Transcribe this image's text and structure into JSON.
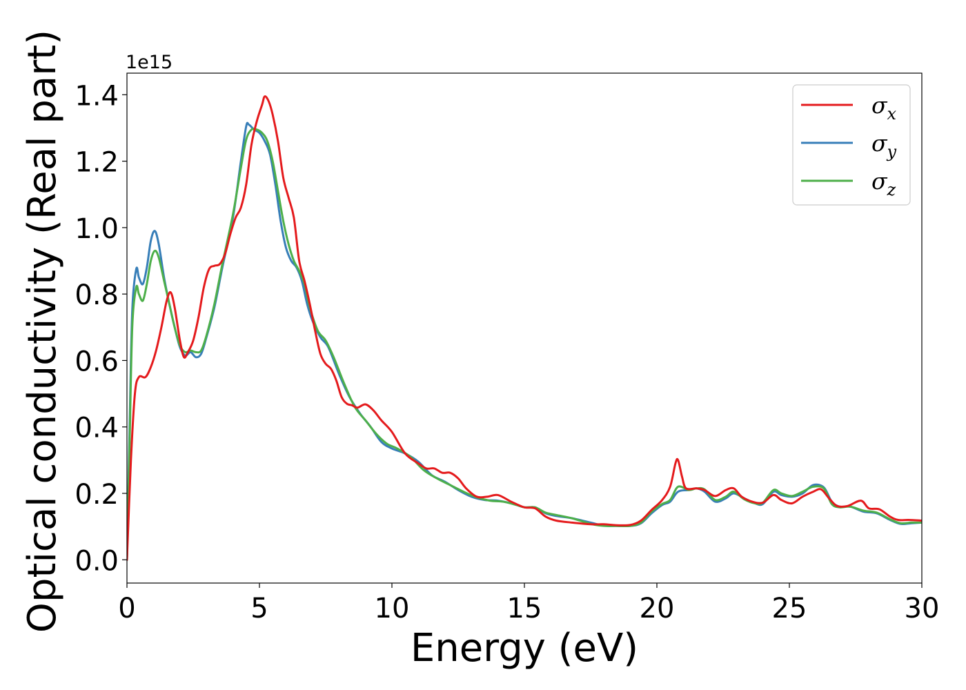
{
  "chart_data": {
    "type": "line",
    "title": "",
    "xlabel": "Energy (eV)",
    "ylabel": "Optical conductivity (Real part)",
    "y_offset_label": "1e15",
    "xlim": [
      0,
      30
    ],
    "ylim": [
      -0.07,
      1.465
    ],
    "x_ticks": [
      0,
      5,
      10,
      15,
      20,
      25,
      30
    ],
    "x_tick_labels": [
      "0",
      "5",
      "10",
      "15",
      "20",
      "25",
      "30"
    ],
    "y_ticks": [
      0.0,
      0.2,
      0.4,
      0.6,
      0.8,
      1.0,
      1.2,
      1.4
    ],
    "y_tick_labels": [
      "0.0",
      "0.2",
      "0.4",
      "0.6",
      "0.8",
      "1.0",
      "1.2",
      "1.4"
    ],
    "grid": false,
    "legend_position": "top-right",
    "series": [
      {
        "name": "σx",
        "legend_symbol": "σ",
        "legend_subscript": "x",
        "color": "#e41a1c",
        "points": [
          [
            0,
            0
          ],
          [
            0.15,
            0.3
          ],
          [
            0.3,
            0.5
          ],
          [
            0.45,
            0.55
          ],
          [
            0.7,
            0.55
          ],
          [
            0.9,
            0.58
          ],
          [
            1.1,
            0.63
          ],
          [
            1.3,
            0.7
          ],
          [
            1.5,
            0.78
          ],
          [
            1.65,
            0.805
          ],
          [
            1.8,
            0.76
          ],
          [
            2.0,
            0.66
          ],
          [
            2.15,
            0.61
          ],
          [
            2.3,
            0.625
          ],
          [
            2.5,
            0.66
          ],
          [
            2.7,
            0.73
          ],
          [
            2.9,
            0.82
          ],
          [
            3.1,
            0.875
          ],
          [
            3.3,
            0.885
          ],
          [
            3.5,
            0.89
          ],
          [
            3.7,
            0.92
          ],
          [
            3.9,
            0.98
          ],
          [
            4.1,
            1.03
          ],
          [
            4.3,
            1.06
          ],
          [
            4.5,
            1.13
          ],
          [
            4.7,
            1.25
          ],
          [
            4.9,
            1.32
          ],
          [
            5.1,
            1.37
          ],
          [
            5.2,
            1.395
          ],
          [
            5.35,
            1.38
          ],
          [
            5.5,
            1.34
          ],
          [
            5.7,
            1.26
          ],
          [
            5.9,
            1.15
          ],
          [
            6.1,
            1.09
          ],
          [
            6.3,
            1.03
          ],
          [
            6.5,
            0.9
          ],
          [
            6.7,
            0.84
          ],
          [
            6.9,
            0.77
          ],
          [
            7.1,
            0.69
          ],
          [
            7.3,
            0.62
          ],
          [
            7.5,
            0.59
          ],
          [
            7.7,
            0.575
          ],
          [
            7.9,
            0.54
          ],
          [
            8.1,
            0.49
          ],
          [
            8.3,
            0.47
          ],
          [
            8.5,
            0.465
          ],
          [
            8.7,
            0.458
          ],
          [
            9.0,
            0.468
          ],
          [
            9.3,
            0.45
          ],
          [
            9.6,
            0.42
          ],
          [
            10.0,
            0.385
          ],
          [
            10.5,
            0.32
          ],
          [
            11.0,
            0.29
          ],
          [
            11.3,
            0.275
          ],
          [
            11.6,
            0.275
          ],
          [
            11.9,
            0.262
          ],
          [
            12.2,
            0.262
          ],
          [
            12.5,
            0.245
          ],
          [
            12.8,
            0.215
          ],
          [
            13.2,
            0.19
          ],
          [
            13.6,
            0.19
          ],
          [
            14.0,
            0.195
          ],
          [
            14.5,
            0.175
          ],
          [
            15.0,
            0.158
          ],
          [
            15.4,
            0.155
          ],
          [
            15.8,
            0.13
          ],
          [
            16.2,
            0.118
          ],
          [
            16.8,
            0.112
          ],
          [
            17.5,
            0.107
          ],
          [
            18.0,
            0.107
          ],
          [
            18.5,
            0.104
          ],
          [
            19.0,
            0.105
          ],
          [
            19.4,
            0.118
          ],
          [
            19.8,
            0.15
          ],
          [
            20.2,
            0.18
          ],
          [
            20.5,
            0.22
          ],
          [
            20.7,
            0.29
          ],
          [
            20.8,
            0.3
          ],
          [
            20.95,
            0.25
          ],
          [
            21.1,
            0.215
          ],
          [
            21.5,
            0.215
          ],
          [
            21.8,
            0.21
          ],
          [
            22.2,
            0.192
          ],
          [
            22.6,
            0.21
          ],
          [
            22.9,
            0.215
          ],
          [
            23.2,
            0.19
          ],
          [
            23.6,
            0.175
          ],
          [
            24.0,
            0.172
          ],
          [
            24.4,
            0.195
          ],
          [
            24.7,
            0.18
          ],
          [
            25.1,
            0.17
          ],
          [
            25.5,
            0.19
          ],
          [
            25.9,
            0.205
          ],
          [
            26.2,
            0.212
          ],
          [
            26.5,
            0.185
          ],
          [
            26.8,
            0.162
          ],
          [
            27.2,
            0.162
          ],
          [
            27.7,
            0.178
          ],
          [
            28.0,
            0.155
          ],
          [
            28.4,
            0.152
          ],
          [
            28.8,
            0.13
          ],
          [
            29.1,
            0.12
          ],
          [
            29.5,
            0.12
          ],
          [
            30.0,
            0.118
          ]
        ]
      },
      {
        "name": "σy",
        "legend_symbol": "σ",
        "legend_subscript": "y",
        "color": "#377eb8",
        "points": [
          [
            0,
            0
          ],
          [
            0.1,
            0.4
          ],
          [
            0.2,
            0.75
          ],
          [
            0.35,
            0.875
          ],
          [
            0.45,
            0.85
          ],
          [
            0.6,
            0.83
          ],
          [
            0.75,
            0.88
          ],
          [
            0.9,
            0.96
          ],
          [
            1.05,
            0.99
          ],
          [
            1.2,
            0.95
          ],
          [
            1.4,
            0.85
          ],
          [
            1.6,
            0.77
          ],
          [
            1.8,
            0.7
          ],
          [
            2.0,
            0.64
          ],
          [
            2.2,
            0.615
          ],
          [
            2.4,
            0.625
          ],
          [
            2.6,
            0.61
          ],
          [
            2.8,
            0.62
          ],
          [
            3.0,
            0.67
          ],
          [
            3.3,
            0.76
          ],
          [
            3.6,
            0.88
          ],
          [
            4.0,
            1.03
          ],
          [
            4.3,
            1.2
          ],
          [
            4.5,
            1.305
          ],
          [
            4.6,
            1.31
          ],
          [
            4.8,
            1.295
          ],
          [
            5.0,
            1.285
          ],
          [
            5.2,
            1.26
          ],
          [
            5.4,
            1.22
          ],
          [
            5.6,
            1.13
          ],
          [
            5.8,
            1.02
          ],
          [
            6.0,
            0.94
          ],
          [
            6.2,
            0.9
          ],
          [
            6.4,
            0.88
          ],
          [
            6.6,
            0.84
          ],
          [
            6.8,
            0.77
          ],
          [
            7.0,
            0.72
          ],
          [
            7.3,
            0.67
          ],
          [
            7.6,
            0.64
          ],
          [
            8.0,
            0.56
          ],
          [
            8.4,
            0.49
          ],
          [
            8.8,
            0.44
          ],
          [
            9.2,
            0.4
          ],
          [
            9.6,
            0.355
          ],
          [
            10.0,
            0.335
          ],
          [
            10.5,
            0.32
          ],
          [
            11.0,
            0.295
          ],
          [
            11.5,
            0.255
          ],
          [
            12.0,
            0.235
          ],
          [
            12.5,
            0.21
          ],
          [
            13.0,
            0.19
          ],
          [
            13.5,
            0.18
          ],
          [
            14.0,
            0.178
          ],
          [
            14.5,
            0.17
          ],
          [
            15.0,
            0.158
          ],
          [
            15.4,
            0.158
          ],
          [
            15.8,
            0.14
          ],
          [
            16.2,
            0.132
          ],
          [
            16.8,
            0.125
          ],
          [
            17.5,
            0.112
          ],
          [
            18.0,
            0.103
          ],
          [
            18.5,
            0.102
          ],
          [
            19.0,
            0.102
          ],
          [
            19.4,
            0.11
          ],
          [
            19.8,
            0.14
          ],
          [
            20.2,
            0.165
          ],
          [
            20.5,
            0.175
          ],
          [
            20.8,
            0.205
          ],
          [
            21.2,
            0.21
          ],
          [
            21.5,
            0.215
          ],
          [
            21.8,
            0.205
          ],
          [
            22.2,
            0.175
          ],
          [
            22.6,
            0.185
          ],
          [
            22.9,
            0.2
          ],
          [
            23.3,
            0.185
          ],
          [
            23.7,
            0.17
          ],
          [
            24.0,
            0.168
          ],
          [
            24.4,
            0.205
          ],
          [
            24.7,
            0.195
          ],
          [
            25.1,
            0.19
          ],
          [
            25.5,
            0.2
          ],
          [
            25.9,
            0.225
          ],
          [
            26.3,
            0.218
          ],
          [
            26.6,
            0.175
          ],
          [
            26.9,
            0.16
          ],
          [
            27.3,
            0.16
          ],
          [
            27.8,
            0.145
          ],
          [
            28.3,
            0.14
          ],
          [
            28.8,
            0.12
          ],
          [
            29.2,
            0.108
          ],
          [
            29.6,
            0.11
          ],
          [
            30.0,
            0.112
          ]
        ]
      },
      {
        "name": "σz",
        "legend_symbol": "σ",
        "legend_subscript": "z",
        "color": "#4daf4a",
        "points": [
          [
            0,
            0
          ],
          [
            0.1,
            0.35
          ],
          [
            0.2,
            0.7
          ],
          [
            0.35,
            0.82
          ],
          [
            0.45,
            0.8
          ],
          [
            0.6,
            0.78
          ],
          [
            0.75,
            0.83
          ],
          [
            0.9,
            0.9
          ],
          [
            1.05,
            0.93
          ],
          [
            1.2,
            0.91
          ],
          [
            1.4,
            0.84
          ],
          [
            1.6,
            0.77
          ],
          [
            1.8,
            0.7
          ],
          [
            2.0,
            0.645
          ],
          [
            2.2,
            0.625
          ],
          [
            2.4,
            0.63
          ],
          [
            2.6,
            0.625
          ],
          [
            2.8,
            0.63
          ],
          [
            3.0,
            0.675
          ],
          [
            3.3,
            0.77
          ],
          [
            3.6,
            0.89
          ],
          [
            4.0,
            1.04
          ],
          [
            4.3,
            1.18
          ],
          [
            4.5,
            1.265
          ],
          [
            4.7,
            1.295
          ],
          [
            4.9,
            1.295
          ],
          [
            5.1,
            1.285
          ],
          [
            5.3,
            1.26
          ],
          [
            5.5,
            1.2
          ],
          [
            5.7,
            1.11
          ],
          [
            5.9,
            1.02
          ],
          [
            6.1,
            0.95
          ],
          [
            6.3,
            0.9
          ],
          [
            6.5,
            0.87
          ],
          [
            6.7,
            0.83
          ],
          [
            6.9,
            0.76
          ],
          [
            7.2,
            0.69
          ],
          [
            7.5,
            0.66
          ],
          [
            7.8,
            0.61
          ],
          [
            8.2,
            0.53
          ],
          [
            8.6,
            0.46
          ],
          [
            9.0,
            0.42
          ],
          [
            9.4,
            0.38
          ],
          [
            9.8,
            0.35
          ],
          [
            10.2,
            0.335
          ],
          [
            10.7,
            0.31
          ],
          [
            11.2,
            0.27
          ],
          [
            11.7,
            0.245
          ],
          [
            12.2,
            0.225
          ],
          [
            12.7,
            0.205
          ],
          [
            13.2,
            0.188
          ],
          [
            13.7,
            0.178
          ],
          [
            14.2,
            0.175
          ],
          [
            14.7,
            0.165
          ],
          [
            15.0,
            0.158
          ],
          [
            15.4,
            0.158
          ],
          [
            15.8,
            0.142
          ],
          [
            16.2,
            0.135
          ],
          [
            16.8,
            0.125
          ],
          [
            17.5,
            0.108
          ],
          [
            18.0,
            0.102
          ],
          [
            18.5,
            0.102
          ],
          [
            19.0,
            0.102
          ],
          [
            19.4,
            0.112
          ],
          [
            19.8,
            0.145
          ],
          [
            20.2,
            0.168
          ],
          [
            20.5,
            0.18
          ],
          [
            20.8,
            0.22
          ],
          [
            21.2,
            0.21
          ],
          [
            21.5,
            0.215
          ],
          [
            21.8,
            0.212
          ],
          [
            22.2,
            0.18
          ],
          [
            22.6,
            0.19
          ],
          [
            22.9,
            0.205
          ],
          [
            23.3,
            0.182
          ],
          [
            23.7,
            0.17
          ],
          [
            24.0,
            0.172
          ],
          [
            24.4,
            0.21
          ],
          [
            24.7,
            0.2
          ],
          [
            25.1,
            0.192
          ],
          [
            25.5,
            0.205
          ],
          [
            25.9,
            0.22
          ],
          [
            26.3,
            0.215
          ],
          [
            26.6,
            0.168
          ],
          [
            26.9,
            0.158
          ],
          [
            27.3,
            0.16
          ],
          [
            27.8,
            0.148
          ],
          [
            28.3,
            0.142
          ],
          [
            28.8,
            0.122
          ],
          [
            29.2,
            0.11
          ],
          [
            29.6,
            0.112
          ],
          [
            30.0,
            0.112
          ]
        ]
      }
    ]
  }
}
